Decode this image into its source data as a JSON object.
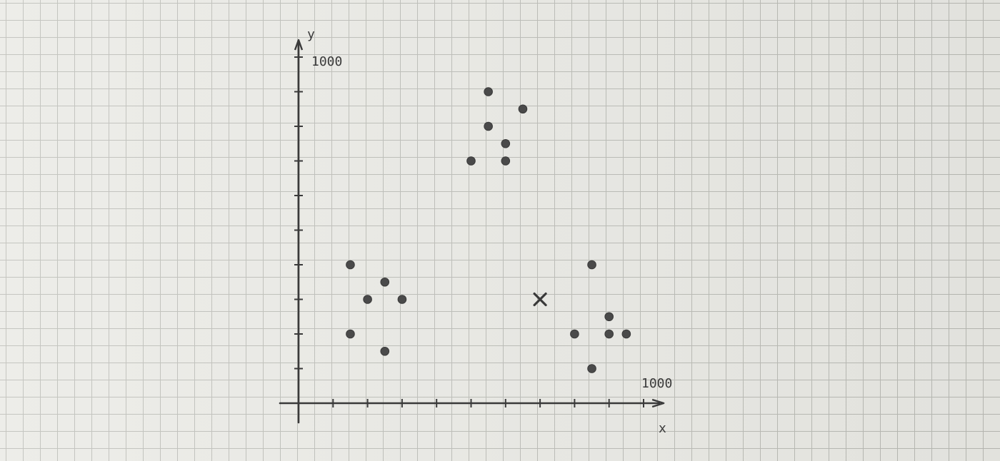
{
  "chart_data": {
    "type": "scatter",
    "title": "",
    "xlabel": "x",
    "ylabel": "y",
    "xlim": [
      0,
      1050
    ],
    "ylim": [
      0,
      1000
    ],
    "x_tick_label": "1000",
    "y_tick_label": "1000",
    "x_tick_values": [
      100,
      200,
      300,
      400,
      500,
      600,
      700,
      800,
      900
    ],
    "y_tick_values": [
      100,
      200,
      300,
      400,
      500,
      600,
      700,
      800,
      900
    ],
    "grid": true,
    "series": [
      {
        "marker": "dot",
        "points": [
          {
            "x": 150,
            "y": 400
          },
          {
            "x": 200,
            "y": 300
          },
          {
            "x": 150,
            "y": 200
          },
          {
            "x": 250,
            "y": 350
          },
          {
            "x": 300,
            "y": 300
          },
          {
            "x": 250,
            "y": 150
          },
          {
            "x": 500,
            "y": 700
          },
          {
            "x": 550,
            "y": 900
          },
          {
            "x": 550,
            "y": 800
          },
          {
            "x": 600,
            "y": 750
          },
          {
            "x": 600,
            "y": 700
          },
          {
            "x": 650,
            "y": 850
          },
          {
            "x": 800,
            "y": 200
          },
          {
            "x": 850,
            "y": 400
          },
          {
            "x": 900,
            "y": 250
          },
          {
            "x": 900,
            "y": 200
          },
          {
            "x": 950,
            "y": 200
          },
          {
            "x": 850,
            "y": 100
          }
        ]
      },
      {
        "marker": "cross",
        "points": [
          {
            "x": 700,
            "y": 300
          }
        ]
      }
    ]
  },
  "colors": {
    "ink": "#3a3a3a",
    "paper": "#e9e9e4",
    "grid": "#b9bab4"
  }
}
